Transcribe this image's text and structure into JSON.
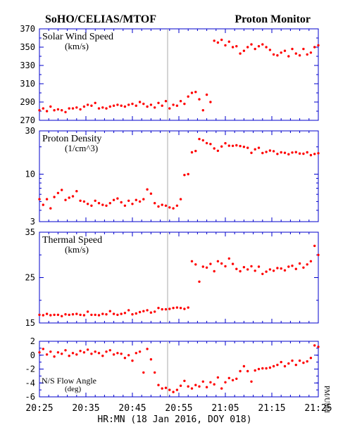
{
  "header": {
    "left_title": "SoHO/CELIAS/MTOF",
    "right_title": "Proton Monitor"
  },
  "x_axis": {
    "ticks": [
      "20:25",
      "20:35",
      "20:45",
      "20:55",
      "21:05",
      "21:15",
      "21:25"
    ],
    "label": "HR:MN (18 Jan 2016, DOY 018)"
  },
  "side_note": "PM/UMd",
  "colors": {
    "points": "#ff0000",
    "axes": "#0000cc",
    "text": "#000000",
    "gap_line": "#aaaaaa"
  },
  "chart_data": [
    {
      "type": "scatter",
      "title": "Solar Wind Speed",
      "unit": "(km/s)",
      "ylim": [
        270,
        370
      ],
      "scale": "linear",
      "yticks": [
        270,
        290,
        310,
        330,
        350,
        370
      ],
      "xlim": [
        0,
        60
      ],
      "x": [
        0,
        0.8,
        1.6,
        2.4,
        3.2,
        4,
        4.8,
        5.6,
        6.4,
        7.2,
        8,
        8.8,
        9.6,
        10.4,
        11.2,
        12,
        12.8,
        13.6,
        14.4,
        15.2,
        16,
        16.8,
        17.6,
        18.4,
        19.2,
        20,
        20.8,
        21.6,
        22.4,
        23.2,
        24,
        24.8,
        25.6,
        26.4,
        27.2,
        28,
        28.8,
        29.6,
        30.4,
        31.2,
        32,
        32.8,
        33.6,
        34.4,
        35.2,
        36,
        36.8,
        37.6,
        38.4,
        39.2,
        40,
        40.8,
        41.6,
        42.4,
        43.2,
        44,
        44.8,
        45.6,
        46.4,
        47.2,
        48,
        48.8,
        49.6,
        50.4,
        51.2,
        52,
        52.8,
        53.6,
        54.4,
        55.2,
        56,
        56.8,
        57.6,
        58.4,
        59.2,
        60
      ],
      "y": [
        281,
        283,
        280,
        285,
        281,
        282,
        281,
        279,
        283,
        283,
        284,
        282,
        285,
        287,
        286,
        289,
        283,
        284,
        283,
        285,
        286,
        287,
        286,
        285,
        287,
        288,
        286,
        290,
        288,
        285,
        287,
        284,
        289,
        286,
        291,
        283,
        287,
        286,
        291,
        288,
        296,
        300,
        301,
        293,
        281,
        298,
        290,
        357,
        355,
        358,
        352,
        356,
        350,
        351,
        343,
        346,
        350,
        353,
        348,
        351,
        353,
        350,
        347,
        342,
        341,
        344,
        346,
        340,
        348,
        343,
        341,
        348,
        342,
        344,
        350,
        352
      ],
      "y_second": [],
      "note": "x in minutes after 20:25; data gap between ~20:53 and ~20:54"
    },
    {
      "type": "scatter",
      "title": "Proton Density",
      "unit": "(1/cm^3)",
      "ylim": [
        3,
        30
      ],
      "scale": "log",
      "yticks": [
        3,
        10,
        30
      ],
      "xlim": [
        0,
        60
      ],
      "x": [
        0,
        0.8,
        1.6,
        2.4,
        3.2,
        4,
        4.8,
        5.6,
        6.4,
        7.2,
        8,
        8.8,
        9.6,
        10.4,
        11.2,
        12,
        12.8,
        13.6,
        14.4,
        15.2,
        16,
        16.8,
        17.6,
        18.4,
        19.2,
        20,
        20.8,
        21.6,
        22.4,
        23.2,
        24,
        24.8,
        25.6,
        26.4,
        27.2,
        28,
        28.8,
        29.6,
        30.4,
        31.2,
        32,
        32.8,
        33.6,
        34.4,
        35.2,
        36,
        36.8,
        37.6,
        38.4,
        39.2,
        40,
        40.8,
        41.6,
        42.4,
        43.2,
        44,
        44.8,
        45.6,
        46.4,
        47.2,
        48,
        48.8,
        49.6,
        50.4,
        51.2,
        52,
        52.8,
        53.6,
        54.4,
        55.2,
        56,
        56.8,
        57.6,
        58.4,
        59.2,
        60
      ],
      "y": [
        5.3,
        4.6,
        5.3,
        4.2,
        5.6,
        6.2,
        6.7,
        5.2,
        5.5,
        5.7,
        6.5,
        5.1,
        5.0,
        4.7,
        4.5,
        5.1,
        4.8,
        4.6,
        4.5,
        4.8,
        5.2,
        5.4,
        4.9,
        4.5,
        5.1,
        4.7,
        5.2,
        5.0,
        5.3,
        6.8,
        6.1,
        4.8,
        4.4,
        4.6,
        4.5,
        4.3,
        4.2,
        4.5,
        5.3,
        9.8,
        10.0,
        17.4,
        18.0,
        24.4,
        23.6,
        22.0,
        21.5,
        19.2,
        18.1,
        20.2,
        21.9,
        20.6,
        20.5,
        20.8,
        20.4,
        20.0,
        19.5,
        17.2,
        18.8,
        19.5,
        17.1,
        17.6,
        18.2,
        17.9,
        16.7,
        17.4,
        17.2,
        16.6,
        17.3,
        17.5,
        16.9,
        16.8,
        17.4,
        16.2,
        16.7,
        17.0
      ],
      "y_second": [],
      "note": "log axis"
    },
    {
      "type": "scatter",
      "title": "Thermal Speed",
      "unit": "(km/s)",
      "ylim": [
        15,
        35
      ],
      "scale": "linear",
      "yticks": [
        15,
        25,
        35
      ],
      "xlim": [
        0,
        60
      ],
      "x": [
        0,
        0.8,
        1.6,
        2.4,
        3.2,
        4,
        4.8,
        5.6,
        6.4,
        7.2,
        8,
        8.8,
        9.6,
        10.4,
        11.2,
        12,
        12.8,
        13.6,
        14.4,
        15.2,
        16,
        16.8,
        17.6,
        18.4,
        19.2,
        20,
        20.8,
        21.6,
        22.4,
        23.2,
        24,
        24.8,
        25.6,
        26.4,
        27.2,
        28,
        28.8,
        29.6,
        30.4,
        31.2,
        32,
        32.8,
        33.6,
        34.4,
        35.2,
        36,
        36.8,
        37.6,
        38.4,
        39.2,
        40,
        40.8,
        41.6,
        42.4,
        43.2,
        44,
        44.8,
        45.6,
        46.4,
        47.2,
        48,
        48.8,
        49.6,
        50.4,
        51.2,
        52,
        52.8,
        53.6,
        54.4,
        55.2,
        56,
        56.8,
        57.6,
        58.4,
        59.2,
        60
      ],
      "y": [
        16.8,
        16.7,
        17.0,
        16.7,
        16.8,
        16.8,
        16.5,
        16.9,
        16.8,
        16.9,
        17.0,
        16.8,
        16.7,
        17.5,
        16.8,
        16.8,
        16.7,
        17.0,
        16.9,
        17.6,
        17.0,
        16.8,
        17.0,
        17.2,
        17.8,
        16.9,
        17.1,
        17.4,
        17.6,
        17.8,
        17.3,
        17.5,
        18.3,
        18.0,
        18.0,
        18.1,
        18.3,
        18.4,
        18.3,
        18.1,
        18.4,
        28.6,
        27.9,
        24.1,
        27.4,
        27.2,
        28.0,
        26.4,
        28.6,
        28.1,
        27.5,
        29.2,
        28.0,
        26.9,
        26.4,
        27.3,
        26.8,
        27.5,
        26.5,
        27.4,
        25.8,
        26.3,
        26.8,
        26.5,
        27.1,
        27.0,
        26.6,
        27.4,
        27.6,
        26.9,
        28.1,
        27.2,
        27.9,
        28.6,
        32.0,
        30.0
      ],
      "y_second": [],
      "note": ""
    },
    {
      "type": "scatter",
      "title": "N/S Flow Angle",
      "unit": "(deg)",
      "ylim": [
        -6,
        2
      ],
      "scale": "linear",
      "yticks": [
        -6,
        -4,
        -2,
        0,
        2
      ],
      "xlim": [
        0,
        60
      ],
      "x": [
        0,
        0.8,
        1.6,
        2.4,
        3.2,
        4,
        4.8,
        5.6,
        6.4,
        7.2,
        8,
        8.8,
        9.6,
        10.4,
        11.2,
        12,
        12.8,
        13.6,
        14.4,
        15.2,
        16,
        16.8,
        17.6,
        18.4,
        19.2,
        20,
        20.8,
        21.6,
        22.4,
        23.2,
        24,
        24.8,
        25.6,
        26.4,
        27.2,
        28,
        28.8,
        29.6,
        30.4,
        31.2,
        32,
        32.8,
        33.6,
        34.4,
        35.2,
        36,
        36.8,
        37.6,
        38.4,
        39.2,
        40,
        40.8,
        41.6,
        42.4,
        43.2,
        44,
        44.8,
        45.6,
        46.4,
        47.2,
        48,
        48.8,
        49.6,
        50.4,
        51.2,
        52,
        52.8,
        53.6,
        54.4,
        55.2,
        56,
        56.8,
        57.6,
        58.4,
        59.2,
        60
      ],
      "y": [
        0.4,
        0.9,
        0.1,
        0.5,
        -0.2,
        0.4,
        0.2,
        0.7,
        -0.1,
        0.3,
        0.1,
        0.6,
        0.4,
        0.8,
        0.2,
        0.5,
        0.3,
        -0.1,
        0.5,
        0.7,
        0.1,
        0.3,
        0.2,
        -0.4,
        0.0,
        -0.8,
        0.3,
        0.5,
        -2.5,
        0.9,
        -0.6,
        -2.5,
        -4.3,
        -4.8,
        -4.7,
        -5.0,
        -5.3,
        -5.0,
        -4.4,
        -3.7,
        -4.5,
        -4.8,
        -4.3,
        -4.5,
        -3.8,
        -4.6,
        -3.9,
        -4.2,
        -3.2,
        -4.8,
        -3.9,
        -3.3,
        -3.6,
        -3.4,
        -2.3,
        -1.6,
        -2.3,
        -3.8,
        -2.2,
        -2.0,
        -1.9,
        -1.9,
        -1.8,
        -1.6,
        -1.4,
        -1.0,
        -1.6,
        -1.2,
        -0.8,
        -1.4,
        -0.8,
        -1.1,
        -0.9,
        -0.4,
        1.4,
        1.2
      ],
      "y_second": [],
      "note": ""
    }
  ]
}
